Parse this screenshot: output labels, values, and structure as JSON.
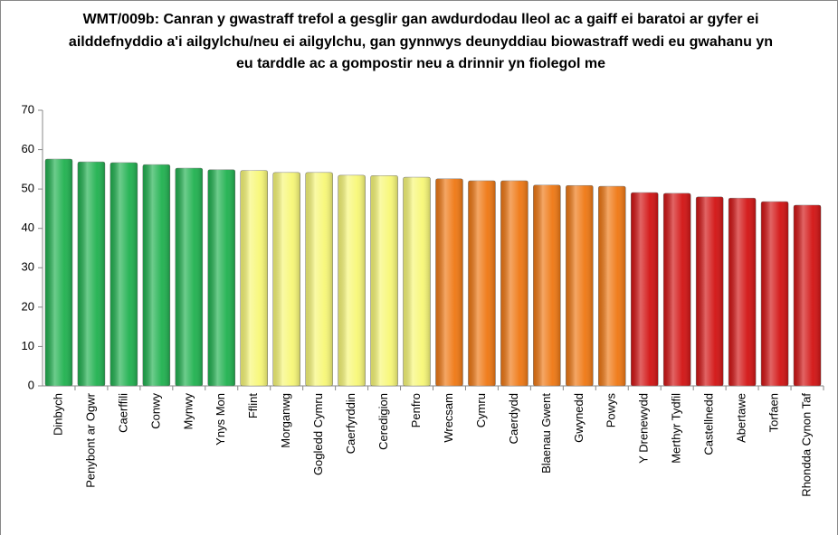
{
  "chart_data": {
    "type": "bar",
    "title": "WMT/009b: Canran y gwastraff trefol a gesglir gan awdurdodau lleol ac a gaiff ei baratoi ar gyfer ei ailddefnyddio a'i ailgylchu/neu ei ailgylchu, gan gynnwys deunyddiau biowastraff wedi eu gwahanu yn eu tarddle ac a gompostir neu a drinnir yn fiolegol me",
    "categories": [
      "Dinbych",
      "Penybont ar Ogwr",
      "Caerffili",
      "Conwy",
      "Mynwy",
      "Ynys Mon",
      "Fflint",
      "Morganwg",
      "Gogledd Cymru",
      "Caerfyrddin",
      "Ceredigion",
      "Penfro",
      "Wrecsam",
      "Cymru",
      "Caerdydd",
      "Blaenau Gwent",
      "Gwynedd",
      "Powys",
      "Y Drenewydd",
      "Merthyr Tydfil",
      "Castellnedd",
      "Abertawe",
      "Torfaen",
      "Rhondda Cynon Taf"
    ],
    "values": [
      57.6,
      56.9,
      56.7,
      56.2,
      55.3,
      54.9,
      54.7,
      54.2,
      54.2,
      53.5,
      53.4,
      53.0,
      52.6,
      52.1,
      52.1,
      51.0,
      50.9,
      50.7,
      49.1,
      48.9,
      48.0,
      47.7,
      46.8,
      45.9
    ],
    "colors": [
      "#1fb14f",
      "#1fb14f",
      "#1fb14f",
      "#1fb14f",
      "#1fb14f",
      "#1fb14f",
      "#f7f776",
      "#f7f776",
      "#f7f776",
      "#f7f776",
      "#f7f776",
      "#f7f776",
      "#ef7712",
      "#ef7712",
      "#ef7712",
      "#ef7712",
      "#ef7712",
      "#ef7712",
      "#d21212",
      "#d21212",
      "#d21212",
      "#d21212",
      "#d21212",
      "#d21212"
    ],
    "ylim": [
      0,
      70
    ],
    "yticks": [
      0,
      10,
      20,
      30,
      40,
      50,
      60,
      70
    ],
    "grid": false
  }
}
